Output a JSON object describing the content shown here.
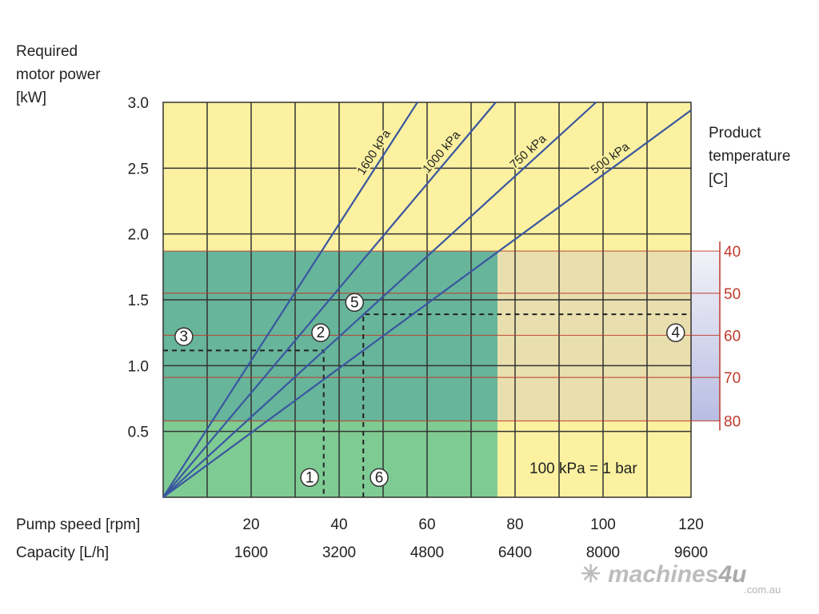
{
  "chart_data": {
    "type": "line",
    "title": "",
    "ylabel": "Required motor power [kW]",
    "ylabel_lines": [
      "Required",
      "motor power",
      "[kW]"
    ],
    "xlabel": "Pump speed [rpm]",
    "xlabel2": "Capacity [L/h]",
    "right_label_lines": [
      "Product",
      "temperature",
      "[C]"
    ],
    "xlim": [
      0,
      120
    ],
    "ylim": [
      0,
      3.0
    ],
    "y_ticks": [
      "0.5",
      "1.0",
      "1.5",
      "2.0",
      "2.5",
      "3.0"
    ],
    "y_tick_values": [
      0.5,
      1.0,
      1.5,
      2.0,
      2.5,
      3.0
    ],
    "x_ticks": [
      "20",
      "40",
      "60",
      "80",
      "100",
      "120"
    ],
    "x_tick_values": [
      20,
      40,
      60,
      80,
      100,
      120
    ],
    "capacity_ticks": [
      "1600",
      "3200",
      "4800",
      "6400",
      "8000",
      "9600"
    ],
    "temperature_ticks": [
      "40",
      "50",
      "60",
      "70",
      "80"
    ],
    "temperature_power_values": [
      1.87,
      1.55,
      1.23,
      0.91,
      0.58
    ],
    "series": [
      {
        "name": "1600 kPa",
        "x": [
          0,
          57.8
        ],
        "y": [
          0,
          3.0
        ]
      },
      {
        "name": "1000 kPa",
        "x": [
          0,
          75.6
        ],
        "y": [
          0,
          3.0
        ]
      },
      {
        "name": "750 kPa",
        "x": [
          0,
          98.4
        ],
        "y": [
          0,
          3.0
        ]
      },
      {
        "name": "500 kPa",
        "x": [
          0,
          120
        ],
        "y": [
          0,
          2.94
        ]
      }
    ],
    "dashed_paths": [
      {
        "x": [
          0,
          36.5,
          36.5
        ],
        "y": [
          1.115,
          1.115,
          0
        ]
      },
      {
        "x": [
          45.5,
          45.5,
          120
        ],
        "y": [
          0,
          1.39,
          1.39
        ]
      }
    ],
    "markers": [
      {
        "label": "1",
        "x": 33.3,
        "y": 0.15
      },
      {
        "label": "2",
        "x": 35.8,
        "y": 1.25
      },
      {
        "label": "3",
        "x": 4.7,
        "y": 1.22
      },
      {
        "label": "4",
        "x": 116.5,
        "y": 1.25
      },
      {
        "label": "5",
        "x": 43.5,
        "y": 1.48
      },
      {
        "label": "6",
        "x": 49.1,
        "y": 0.15
      }
    ],
    "regions": {
      "green_max_rpm": 76,
      "band_kw": [
        0.58,
        1.87
      ]
    },
    "annotation": "100 kPa = 1 bar",
    "grid": true
  },
  "colors": {
    "yellow": "#fbf1a0",
    "green": "#7fcb94",
    "teal": "#5fae9c",
    "beige": "#e5dcb0",
    "line": "#3a56a0",
    "temp": "#c0392b"
  },
  "watermark": {
    "brand": "machines4u",
    "domain": ".com.au"
  }
}
